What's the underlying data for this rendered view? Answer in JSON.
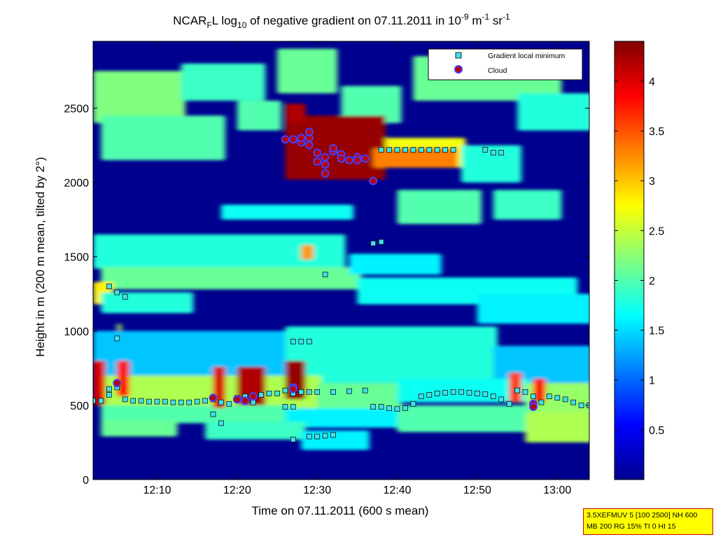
{
  "figure": {
    "title": {
      "prefix": "NCAR",
      "sub1": "F",
      "mid1": "L log",
      "sub2": "10",
      "mid2": " of negative gradient on 07.11.2011 in 10",
      "sup1": "-9",
      "mid3": " m",
      "sup2": "-1",
      "mid4": " sr",
      "sup3": "-1"
    },
    "xlabel": "Time on 07.11.2011 (600 s mean)",
    "ylabel": "Height in m (200 m mean, tilted by 2°)",
    "settings_line1": "3.5XEFMUV 5 [100 2500] NH 600",
    "settings_line2": "MB 200 RG 15% TI 0 HI 15",
    "colors": {
      "background_field": "#00008f",
      "colormap": "jet",
      "marker_min_fill": "#40e0e8",
      "marker_cloud_fill": "#c00000",
      "marker_cloud_edge": "#4040ff"
    }
  },
  "chart_data": {
    "type": "heatmap",
    "x_axis": {
      "unit": "time",
      "range": [
        "12:02",
        "13:04"
      ],
      "ticks": [
        "12:10",
        "12:20",
        "12:30",
        "12:40",
        "12:50",
        "13:00"
      ]
    },
    "y_axis": {
      "range": [
        0,
        2950
      ],
      "ticks": [
        "0",
        "500",
        "1000",
        "1500",
        "2000",
        "2500"
      ]
    },
    "colorbar": {
      "range": [
        0,
        4.4
      ],
      "ticks": [
        "0.5",
        "1",
        "1.5",
        "2",
        "2.5",
        "3",
        "3.5",
        "4"
      ]
    },
    "legend": {
      "position": "top-right",
      "entries": [
        "Gradient local minimum",
        "Cloud"
      ]
    },
    "layers": [
      {
        "t0": "12:02",
        "t1": "12:13",
        "h0": 2400,
        "h1": 2750,
        "value": 2.2
      },
      {
        "t0": "12:03",
        "t1": "12:18",
        "h0": 2150,
        "h1": 2450,
        "value": 2.0
      },
      {
        "t0": "12:13",
        "t1": "12:23",
        "h0": 2550,
        "h1": 2800,
        "value": 1.9
      },
      {
        "t0": "12:20",
        "t1": "12:25",
        "h0": 2350,
        "h1": 2550,
        "value": 2.0
      },
      {
        "t0": "12:25",
        "t1": "12:32",
        "h0": 2600,
        "h1": 2900,
        "value": 2.1
      },
      {
        "t0": "12:33",
        "t1": "12:40",
        "h0": 2400,
        "h1": 2650,
        "value": 2.0
      },
      {
        "t0": "12:42",
        "t1": "13:00",
        "h0": 2550,
        "h1": 2850,
        "value": 2.1
      },
      {
        "t0": "12:55",
        "t1": "13:04",
        "h0": 2350,
        "h1": 2600,
        "value": 1.8
      },
      {
        "t0": "12:38",
        "t1": "12:48",
        "h0": 2100,
        "h1": 2300,
        "value": 2.7
      },
      {
        "t0": "12:48",
        "t1": "12:55",
        "h0": 2000,
        "h1": 2250,
        "value": 1.8
      },
      {
        "t0": "12:40",
        "t1": "12:50",
        "h0": 1720,
        "h1": 1950,
        "value": 2.0
      },
      {
        "t0": "12:52",
        "t1": "13:00",
        "h0": 1750,
        "h1": 1950,
        "value": 1.9
      },
      {
        "t0": "12:18",
        "t1": "12:34",
        "h0": 1750,
        "h1": 1850,
        "value": 1.7
      },
      {
        "t0": "12:02",
        "t1": "12:33",
        "h0": 1420,
        "h1": 1650,
        "value": 1.8
      },
      {
        "t0": "12:03",
        "t1": "12:35",
        "h0": 1280,
        "h1": 1430,
        "value": 2.1
      },
      {
        "t0": "12:34",
        "t1": "12:45",
        "h0": 1380,
        "h1": 1520,
        "value": 1.6
      },
      {
        "t0": "12:35",
        "t1": "13:02",
        "h0": 1180,
        "h1": 1360,
        "value": 1.7
      },
      {
        "t0": "12:50",
        "t1": "13:04",
        "h0": 1050,
        "h1": 1250,
        "value": 1.6
      },
      {
        "t0": "12:02",
        "t1": "12:04",
        "h0": 1180,
        "h1": 1330,
        "value": 2.8
      },
      {
        "t0": "12:03",
        "t1": "12:14",
        "h0": 1120,
        "h1": 1260,
        "value": 1.8
      },
      {
        "t0": "12:02",
        "t1": "12:26",
        "h0": 700,
        "h1": 1000,
        "value": 1.4
      },
      {
        "t0": "12:26",
        "t1": "12:52",
        "h0": 650,
        "h1": 1030,
        "value": 1.8
      },
      {
        "t0": "12:52",
        "t1": "13:04",
        "h0": 650,
        "h1": 900,
        "value": 1.4
      },
      {
        "t0": "12:03",
        "t1": "12:30",
        "h0": 480,
        "h1": 700,
        "value": 2.4
      },
      {
        "t0": "12:30",
        "t1": "12:40",
        "h0": 470,
        "h1": 650,
        "value": 2.1
      },
      {
        "t0": "12:40",
        "t1": "12:56",
        "h0": 520,
        "h1": 680,
        "value": 1.7
      },
      {
        "t0": "12:56",
        "t1": "13:04",
        "h0": 450,
        "h1": 650,
        "value": 2.3
      },
      {
        "t0": "12:03",
        "t1": "12:26",
        "h0": 380,
        "h1": 500,
        "value": 2.0
      },
      {
        "t0": "12:26",
        "t1": "12:40",
        "h0": 350,
        "h1": 480,
        "value": 1.6
      },
      {
        "t0": "12:40",
        "t1": "12:56",
        "h0": 320,
        "h1": 500,
        "value": 2.0
      },
      {
        "t0": "12:56",
        "t1": "13:04",
        "h0": 250,
        "h1": 450,
        "value": 2.4
      },
      {
        "t0": "12:03",
        "t1": "12:12",
        "h0": 290,
        "h1": 400,
        "value": 2.1
      },
      {
        "t0": "12:16",
        "t1": "12:28",
        "h0": 270,
        "h1": 390,
        "value": 1.9
      },
      {
        "t0": "12:28",
        "t1": "12:36",
        "h0": 200,
        "h1": 330,
        "value": 1.6
      },
      {
        "t0": "12:26",
        "t1": "12:38",
        "h0": 2020,
        "h1": 2450,
        "value": 4.3
      },
      {
        "t0": "12:37",
        "t1": "12:47",
        "h0": 2100,
        "h1": 2230,
        "value": 3.3
      },
      {
        "t0": "12:26",
        "t1": "12:28",
        "h0": 2400,
        "h1": 2530,
        "value": 4.2
      },
      {
        "t0": "12:02",
        "t1": "12:03",
        "h0": 500,
        "h1": 800,
        "value": 4.0
      },
      {
        "t0": "12:05",
        "t1": "12:06",
        "h0": 560,
        "h1": 800,
        "value": 3.8
      },
      {
        "t0": "12:17",
        "t1": "12:18",
        "h0": 480,
        "h1": 760,
        "value": 4.0
      },
      {
        "t0": "12:20",
        "t1": "12:23",
        "h0": 500,
        "h1": 760,
        "value": 4.2
      },
      {
        "t0": "12:26",
        "t1": "12:28",
        "h0": 540,
        "h1": 800,
        "value": 4.3
      },
      {
        "t0": "12:54",
        "t1": "12:55",
        "h0": 520,
        "h1": 720,
        "value": 3.6
      },
      {
        "t0": "12:57",
        "t1": "12:58",
        "h0": 520,
        "h1": 680,
        "value": 3.8
      },
      {
        "t0": "12:28",
        "t1": "12:29",
        "h0": 1480,
        "h1": 1580,
        "value": 3.2
      },
      {
        "t0": "12:05",
        "t1": "12:05",
        "h0": 1000,
        "h1": 1050,
        "value": 2.4
      }
    ],
    "series": [
      {
        "name": "Gradient local minimum",
        "points": [
          [
            "12:02",
            530
          ],
          [
            "12:03",
            530
          ],
          [
            "12:04",
            570
          ],
          [
            "12:04",
            610
          ],
          [
            "12:05",
            620
          ],
          [
            "12:06",
            540
          ],
          [
            "12:07",
            530
          ],
          [
            "12:08",
            530
          ],
          [
            "12:09",
            525
          ],
          [
            "12:10",
            525
          ],
          [
            "12:11",
            525
          ],
          [
            "12:12",
            520
          ],
          [
            "12:13",
            520
          ],
          [
            "12:14",
            520
          ],
          [
            "12:15",
            525
          ],
          [
            "12:16",
            530
          ],
          [
            "12:17",
            540
          ],
          [
            "12:18",
            520
          ],
          [
            "12:19",
            510
          ],
          [
            "12:20",
            550
          ],
          [
            "12:21",
            560
          ],
          [
            "12:22",
            520
          ],
          [
            "12:23",
            570
          ],
          [
            "12:24",
            580
          ],
          [
            "12:25",
            580
          ],
          [
            "12:26",
            600
          ],
          [
            "12:27",
            580
          ],
          [
            "12:28",
            590
          ],
          [
            "12:29",
            590
          ],
          [
            "12:30",
            590
          ],
          [
            "12:32",
            590
          ],
          [
            "12:34",
            595
          ],
          [
            "12:36",
            600
          ],
          [
            "12:37",
            490
          ],
          [
            "12:38",
            490
          ],
          [
            "12:39",
            480
          ],
          [
            "12:40",
            475
          ],
          [
            "12:41",
            480
          ],
          [
            "12:42",
            510
          ],
          [
            "12:43",
            560
          ],
          [
            "12:44",
            570
          ],
          [
            "12:45",
            580
          ],
          [
            "12:46",
            585
          ],
          [
            "12:47",
            590
          ],
          [
            "12:48",
            590
          ],
          [
            "12:49",
            585
          ],
          [
            "12:50",
            580
          ],
          [
            "12:51",
            575
          ],
          [
            "12:52",
            560
          ],
          [
            "12:53",
            540
          ],
          [
            "12:54",
            510
          ],
          [
            "12:55",
            600
          ],
          [
            "12:56",
            590
          ],
          [
            "12:57",
            560
          ],
          [
            "12:58",
            520
          ],
          [
            "12:59",
            560
          ],
          [
            "13:00",
            550
          ],
          [
            "13:01",
            540
          ],
          [
            "13:02",
            520
          ],
          [
            "13:03",
            500
          ],
          [
            "13:04",
            500
          ],
          [
            "12:04",
            1300
          ],
          [
            "12:05",
            1260
          ],
          [
            "12:06",
            1230
          ],
          [
            "12:05",
            950
          ],
          [
            "12:27",
            930
          ],
          [
            "12:28",
            930
          ],
          [
            "12:29",
            930
          ],
          [
            "12:26",
            490
          ],
          [
            "12:27",
            490
          ],
          [
            "12:17",
            440
          ],
          [
            "12:18",
            380
          ],
          [
            "12:29",
            290
          ],
          [
            "12:30",
            290
          ],
          [
            "12:31",
            295
          ],
          [
            "12:32",
            300
          ],
          [
            "12:27",
            270
          ],
          [
            "12:31",
            1380
          ],
          [
            "12:37",
            1590
          ],
          [
            "12:38",
            1600
          ],
          [
            "12:38",
            2220
          ],
          [
            "12:39",
            2220
          ],
          [
            "12:40",
            2220
          ],
          [
            "12:41",
            2220
          ],
          [
            "12:42",
            2220
          ],
          [
            "12:43",
            2220
          ],
          [
            "12:44",
            2220
          ],
          [
            "12:45",
            2220
          ],
          [
            "12:46",
            2220
          ],
          [
            "12:47",
            2220
          ],
          [
            "12:51",
            2220
          ],
          [
            "12:52",
            2200
          ],
          [
            "12:53",
            2200
          ]
        ]
      },
      {
        "name": "Cloud",
        "points": [
          [
            "12:05",
            650
          ],
          [
            "12:17",
            550
          ],
          [
            "12:20",
            540
          ],
          [
            "12:21",
            530
          ],
          [
            "12:22",
            560
          ],
          [
            "12:27",
            620
          ],
          [
            "12:27",
            610
          ],
          [
            "12:57",
            510
          ],
          [
            "12:57",
            490
          ],
          [
            "12:26",
            2290
          ],
          [
            "12:27",
            2290
          ],
          [
            "12:28",
            2270
          ],
          [
            "12:28",
            2300
          ],
          [
            "12:29",
            2250
          ],
          [
            "12:29",
            2300
          ],
          [
            "12:29",
            2340
          ],
          [
            "12:30",
            2200
          ],
          [
            "12:30",
            2140
          ],
          [
            "12:31",
            2120
          ],
          [
            "12:31",
            2170
          ],
          [
            "12:31",
            2060
          ],
          [
            "12:32",
            2210
          ],
          [
            "12:32",
            2230
          ],
          [
            "12:33",
            2190
          ],
          [
            "12:33",
            2160
          ],
          [
            "12:34",
            2150
          ],
          [
            "12:35",
            2170
          ],
          [
            "12:35",
            2150
          ],
          [
            "12:36",
            2160
          ],
          [
            "12:37",
            2010
          ]
        ]
      }
    ]
  }
}
